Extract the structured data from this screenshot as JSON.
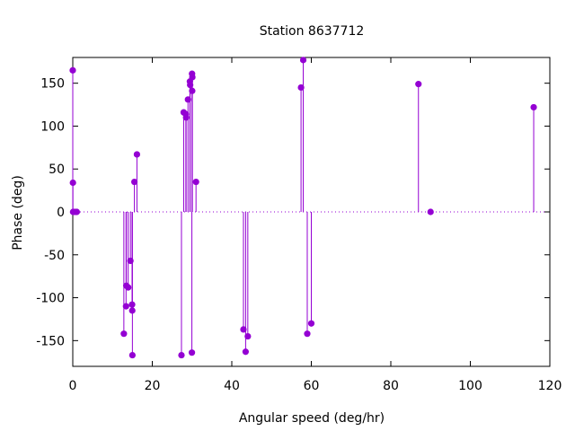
{
  "chart_data": {
    "type": "scatter",
    "style": "impulses",
    "title": "Station 8637712",
    "xlabel": "Angular speed (deg/hr)",
    "ylabel": "Phase (deg)",
    "xlim": [
      0,
      120
    ],
    "ylim": [
      -180,
      180
    ],
    "x_ticks": [
      0,
      20,
      40,
      60,
      80,
      100,
      120
    ],
    "y_ticks": [
      -150,
      -100,
      -50,
      0,
      50,
      100,
      150
    ],
    "zero_line": "dotted",
    "grid": false,
    "legend": "none",
    "color": "#9400d3",
    "points": [
      {
        "x": 0.0,
        "y": 165
      },
      {
        "x": 0.04,
        "y": 34
      },
      {
        "x": 0.08,
        "y": 0
      },
      {
        "x": 0.5,
        "y": 0
      },
      {
        "x": 1.0,
        "y": 0
      },
      {
        "x": 12.85,
        "y": -142
      },
      {
        "x": 13.4,
        "y": -110
      },
      {
        "x": 13.47,
        "y": -86
      },
      {
        "x": 13.94,
        "y": -88
      },
      {
        "x": 14.5,
        "y": -57
      },
      {
        "x": 14.92,
        "y": -108
      },
      {
        "x": 14.96,
        "y": -115
      },
      {
        "x": 15.0,
        "y": -167
      },
      {
        "x": 15.5,
        "y": 35
      },
      {
        "x": 16.14,
        "y": 67
      },
      {
        "x": 27.34,
        "y": -167
      },
      {
        "x": 27.9,
        "y": 116
      },
      {
        "x": 28.44,
        "y": 114
      },
      {
        "x": 28.51,
        "y": 110
      },
      {
        "x": 28.98,
        "y": 131
      },
      {
        "x": 29.46,
        "y": 152
      },
      {
        "x": 29.53,
        "y": 148
      },
      {
        "x": 29.96,
        "y": -164
      },
      {
        "x": 30.0,
        "y": 161
      },
      {
        "x": 30.04,
        "y": 141
      },
      {
        "x": 30.08,
        "y": 157
      },
      {
        "x": 31.0,
        "y": 35
      },
      {
        "x": 42.93,
        "y": -137
      },
      {
        "x": 43.48,
        "y": -163
      },
      {
        "x": 44.03,
        "y": -145
      },
      {
        "x": 57.42,
        "y": 145
      },
      {
        "x": 57.97,
        "y": 177
      },
      {
        "x": 58.98,
        "y": -142
      },
      {
        "x": 60.0,
        "y": -130
      },
      {
        "x": 86.95,
        "y": 149
      },
      {
        "x": 90.0,
        "y": 0
      },
      {
        "x": 115.94,
        "y": 122
      }
    ]
  }
}
